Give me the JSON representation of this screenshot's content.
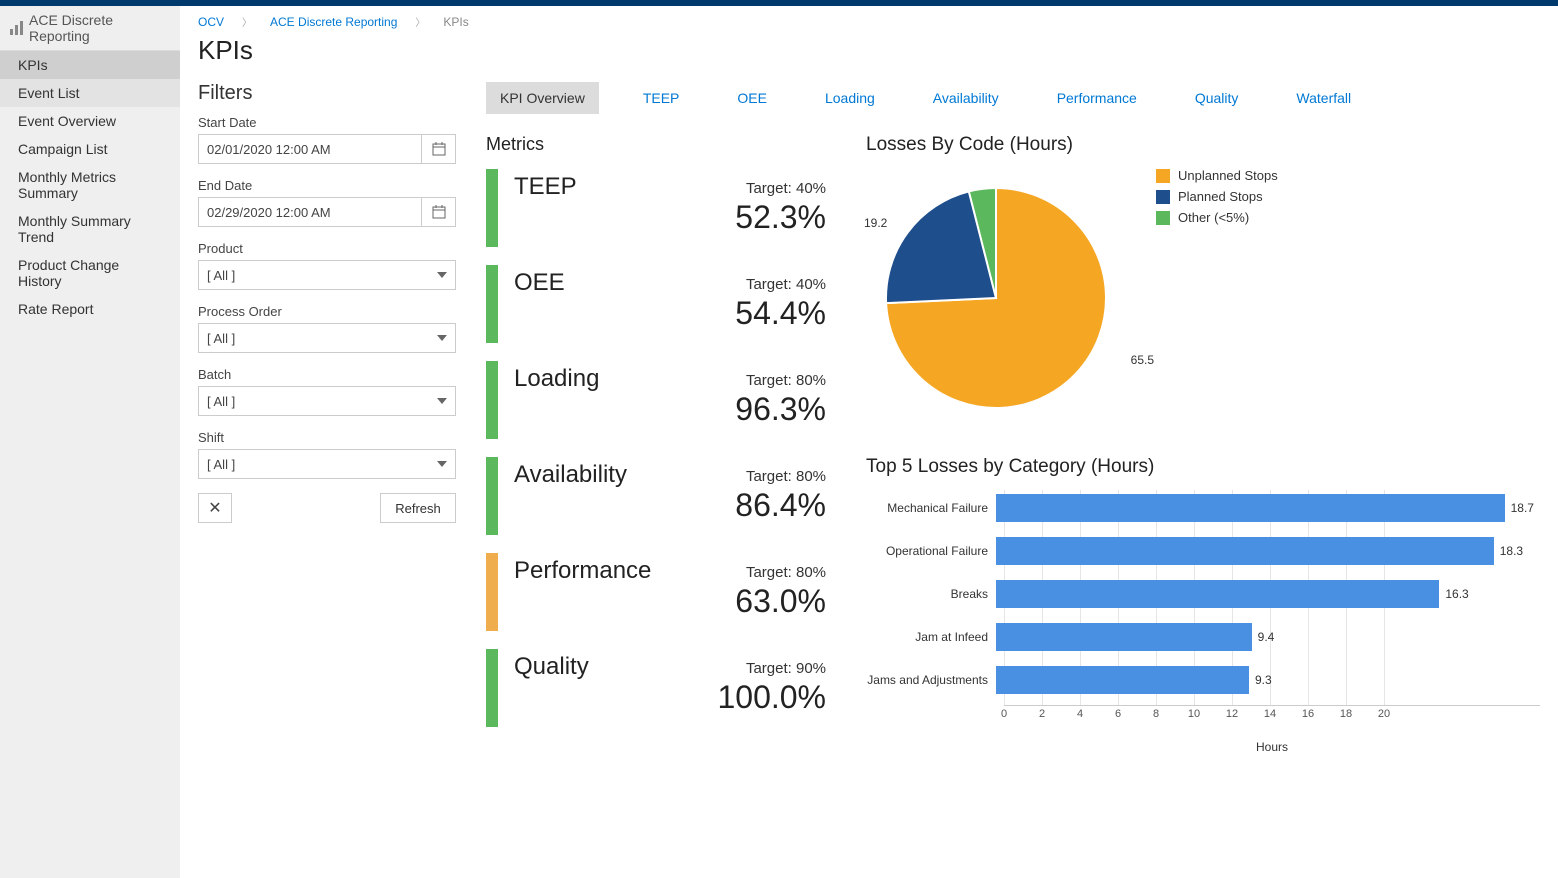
{
  "sidebar": {
    "title": "ACE Discrete Reporting",
    "items": [
      {
        "label": "KPIs",
        "active": true
      },
      {
        "label": "Event List",
        "highlight": true
      },
      {
        "label": "Event Overview"
      },
      {
        "label": "Campaign List"
      },
      {
        "label": "Monthly Metrics Summary"
      },
      {
        "label": "Monthly Summary Trend"
      },
      {
        "label": "Product Change History"
      },
      {
        "label": "Rate Report"
      }
    ]
  },
  "breadcrumb": [
    "OCV",
    "ACE Discrete Reporting",
    "KPIs"
  ],
  "page_title": "KPIs",
  "filters": {
    "title": "Filters",
    "start_date": {
      "label": "Start Date",
      "value": "02/01/2020 12:00 AM"
    },
    "end_date": {
      "label": "End Date",
      "value": "02/29/2020 12:00 AM"
    },
    "product": {
      "label": "Product",
      "value": "[ All ]"
    },
    "process_order": {
      "label": "Process Order",
      "value": "[ All ]"
    },
    "batch": {
      "label": "Batch",
      "value": "[ All ]"
    },
    "shift": {
      "label": "Shift",
      "value": "[ All ]"
    },
    "refresh_label": "Refresh"
  },
  "tabs": [
    "KPI Overview",
    "TEEP",
    "OEE",
    "Loading",
    "Availability",
    "Performance",
    "Quality",
    "Waterfall"
  ],
  "active_tab": 0,
  "metrics": {
    "title": "Metrics",
    "good_color": "#5cb85c",
    "warn_color": "#f0ad4e",
    "items": [
      {
        "label": "TEEP",
        "target": "Target: 40%",
        "value": "52.3%",
        "status": "good"
      },
      {
        "label": "OEE",
        "target": "Target: 40%",
        "value": "54.4%",
        "status": "good"
      },
      {
        "label": "Loading",
        "target": "Target: 80%",
        "value": "96.3%",
        "status": "good"
      },
      {
        "label": "Availability",
        "target": "Target: 80%",
        "value": "86.4%",
        "status": "good"
      },
      {
        "label": "Performance",
        "target": "Target: 80%",
        "value": "63.0%",
        "status": "warn"
      },
      {
        "label": "Quality",
        "target": "Target: 90%",
        "value": "100.0%",
        "status": "good"
      }
    ]
  },
  "pie": {
    "title": "Losses By Code (Hours)",
    "slices": [
      {
        "label": "Unplanned Stops",
        "value": 65.5,
        "color": "#f5a623",
        "display": "65.5"
      },
      {
        "label": "Planned Stops",
        "value": 19.2,
        "color": "#1f4e8c",
        "display": "19.2"
      },
      {
        "label": "Other (<5%)",
        "value": 3.5,
        "color": "#5cb85c",
        "display": ""
      }
    ]
  },
  "hbar": {
    "title": "Top 5 Losses by Category (Hours)",
    "xmax": 20,
    "xticks": [
      0,
      2,
      4,
      6,
      8,
      10,
      12,
      14,
      16,
      18,
      20
    ],
    "xlabel": "Hours",
    "bar_color": "#4a90e2",
    "items": [
      {
        "label": "Mechanical Failure",
        "value": 18.7
      },
      {
        "label": "Operational Failure",
        "value": 18.3
      },
      {
        "label": "Breaks",
        "value": 16.3
      },
      {
        "label": "Jam at Infeed",
        "value": 9.4
      },
      {
        "label": "Jams and Adjustments",
        "value": 9.3
      }
    ]
  }
}
